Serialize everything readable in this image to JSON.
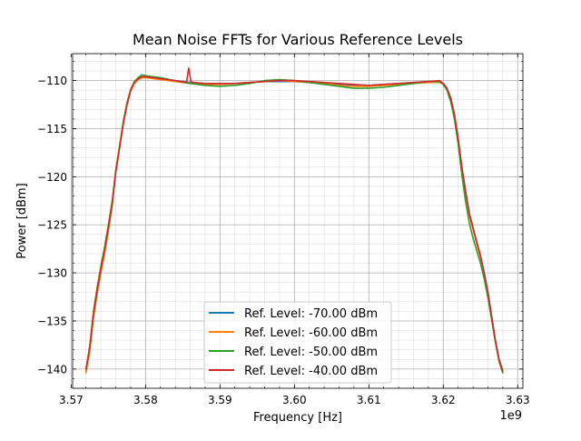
{
  "chart_data": {
    "type": "line",
    "title": "Mean Noise FFTs for Various Reference Levels",
    "xlabel": "Frequency [Hz]",
    "ylabel": "Power [dBm]",
    "x_offset_label": "1e9",
    "xlim": [
      3.5702,
      3.6307
    ],
    "ylim": [
      -142.0,
      -107.2
    ],
    "x_ticks": [
      {
        "value": 3.57,
        "label": "3.57"
      },
      {
        "value": 3.58,
        "label": "3.58"
      },
      {
        "value": 3.59,
        "label": "3.59"
      },
      {
        "value": 3.6,
        "label": "3.60"
      },
      {
        "value": 3.61,
        "label": "3.61"
      },
      {
        "value": 3.62,
        "label": "3.62"
      },
      {
        "value": 3.63,
        "label": "3.63"
      }
    ],
    "y_ticks": [
      {
        "value": -110,
        "label": "−110"
      },
      {
        "value": -115,
        "label": "−115"
      },
      {
        "value": -120,
        "label": "−120"
      },
      {
        "value": -125,
        "label": "−125"
      },
      {
        "value": -130,
        "label": "−130"
      },
      {
        "value": -135,
        "label": "−135"
      },
      {
        "value": -140,
        "label": "−140"
      }
    ],
    "grid": true,
    "minor_grid": true,
    "legend_position": "lower center",
    "series": [
      {
        "name": "Ref. Level: -70.00 dBm",
        "color": "#1f77b4",
        "x": [
          3.572,
          3.5725,
          3.573,
          3.5735,
          3.574,
          3.5745,
          3.575,
          3.5755,
          3.576,
          3.5765,
          3.577,
          3.5775,
          3.578,
          3.5785,
          3.579,
          3.5795,
          3.58,
          3.582,
          3.584,
          3.586,
          3.588,
          3.59,
          3.592,
          3.594,
          3.596,
          3.598,
          3.6,
          3.602,
          3.604,
          3.606,
          3.608,
          3.61,
          3.612,
          3.614,
          3.616,
          3.618,
          3.6195,
          3.62,
          3.6205,
          3.621,
          3.6215,
          3.622,
          3.6225,
          3.623,
          3.6235,
          3.624,
          3.6245,
          3.625,
          3.6255,
          3.626,
          3.6265,
          3.627,
          3.6275,
          3.628
        ],
        "y": [
          -140.2,
          -138.0,
          -134.5,
          -132.0,
          -129.8,
          -127.8,
          -125.5,
          -123.0,
          -119.5,
          -117.0,
          -114.5,
          -112.5,
          -111.0,
          -110.2,
          -109.9,
          -109.7,
          -109.6,
          -109.8,
          -110.0,
          -110.2,
          -110.3,
          -110.4,
          -110.3,
          -110.2,
          -110.1,
          -110.1,
          -110.1,
          -110.2,
          -110.3,
          -110.4,
          -110.5,
          -110.5,
          -110.4,
          -110.3,
          -110.2,
          -110.1,
          -110.1,
          -110.3,
          -110.8,
          -111.8,
          -113.5,
          -116.0,
          -119.0,
          -121.5,
          -123.8,
          -125.3,
          -126.8,
          -128.2,
          -130.0,
          -132.0,
          -134.5,
          -137.0,
          -139.0,
          -140.2
        ]
      },
      {
        "name": "Ref. Level: -60.00 dBm",
        "color": "#ff7f0e",
        "x": [
          3.572,
          3.5725,
          3.573,
          3.5735,
          3.574,
          3.5745,
          3.575,
          3.5755,
          3.576,
          3.5765,
          3.577,
          3.5775,
          3.578,
          3.5785,
          3.579,
          3.5795,
          3.58,
          3.582,
          3.584,
          3.586,
          3.588,
          3.59,
          3.592,
          3.594,
          3.596,
          3.598,
          3.6,
          3.602,
          3.604,
          3.606,
          3.608,
          3.61,
          3.612,
          3.614,
          3.616,
          3.618,
          3.6195,
          3.62,
          3.6205,
          3.621,
          3.6215,
          3.622,
          3.6225,
          3.623,
          3.6235,
          3.624,
          3.6245,
          3.625,
          3.6255,
          3.626,
          3.6265,
          3.627,
          3.6275,
          3.628
        ],
        "y": [
          -140.4,
          -138.2,
          -134.7,
          -132.2,
          -130.0,
          -128.0,
          -125.7,
          -123.1,
          -119.6,
          -117.1,
          -114.6,
          -112.6,
          -111.1,
          -110.3,
          -109.9,
          -109.7,
          -109.7,
          -109.9,
          -110.1,
          -110.3,
          -110.4,
          -110.4,
          -110.3,
          -110.2,
          -110.1,
          -110.0,
          -110.1,
          -110.2,
          -110.3,
          -110.5,
          -110.6,
          -110.6,
          -110.5,
          -110.4,
          -110.3,
          -110.2,
          -110.2,
          -110.4,
          -110.9,
          -111.9,
          -113.6,
          -116.1,
          -119.1,
          -121.6,
          -124.0,
          -125.5,
          -127.0,
          -128.4,
          -130.2,
          -132.2,
          -134.7,
          -137.2,
          -139.2,
          -140.4
        ]
      },
      {
        "name": "Ref. Level: -50.00 dBm",
        "color": "#2ca02c",
        "x": [
          3.572,
          3.5725,
          3.573,
          3.5735,
          3.574,
          3.5745,
          3.575,
          3.5755,
          3.576,
          3.5765,
          3.577,
          3.5775,
          3.578,
          3.5785,
          3.579,
          3.5795,
          3.58,
          3.582,
          3.584,
          3.586,
          3.588,
          3.59,
          3.592,
          3.594,
          3.596,
          3.598,
          3.6,
          3.602,
          3.604,
          3.606,
          3.608,
          3.61,
          3.612,
          3.614,
          3.616,
          3.618,
          3.6195,
          3.62,
          3.6205,
          3.621,
          3.6215,
          3.622,
          3.6225,
          3.623,
          3.6235,
          3.624,
          3.6245,
          3.625,
          3.6255,
          3.626,
          3.6265,
          3.627,
          3.6275,
          3.628
        ],
        "y": [
          -140.0,
          -137.6,
          -134.0,
          -131.5,
          -129.3,
          -127.3,
          -125.0,
          -122.6,
          -119.3,
          -116.8,
          -114.3,
          -112.3,
          -110.9,
          -110.1,
          -109.7,
          -109.4,
          -109.5,
          -109.7,
          -110.0,
          -110.3,
          -110.5,
          -110.6,
          -110.5,
          -110.3,
          -110.0,
          -109.9,
          -110.0,
          -110.2,
          -110.4,
          -110.6,
          -110.8,
          -110.8,
          -110.7,
          -110.5,
          -110.3,
          -110.1,
          -110.1,
          -110.4,
          -111.0,
          -112.2,
          -114.0,
          -116.6,
          -119.8,
          -122.6,
          -124.8,
          -126.4,
          -127.7,
          -129.0,
          -130.6,
          -132.6,
          -134.9,
          -137.2,
          -139.2,
          -140.4
        ]
      },
      {
        "name": "Ref. Level: -40.00 dBm",
        "color": "#d62728",
        "x": [
          3.572,
          3.5725,
          3.573,
          3.5735,
          3.574,
          3.5745,
          3.575,
          3.5755,
          3.576,
          3.5765,
          3.577,
          3.5775,
          3.578,
          3.5785,
          3.579,
          3.5795,
          3.58,
          3.582,
          3.584,
          3.5855,
          3.5858,
          3.5861,
          3.5864,
          3.588,
          3.59,
          3.592,
          3.594,
          3.596,
          3.598,
          3.6,
          3.602,
          3.604,
          3.606,
          3.608,
          3.61,
          3.612,
          3.614,
          3.616,
          3.618,
          3.6195,
          3.62,
          3.6205,
          3.621,
          3.6215,
          3.622,
          3.6225,
          3.623,
          3.6235,
          3.624,
          3.6245,
          3.625,
          3.6255,
          3.626,
          3.6265,
          3.627,
          3.6275,
          3.628
        ],
        "y": [
          -140.0,
          -137.8,
          -134.3,
          -131.8,
          -129.6,
          -127.6,
          -125.3,
          -122.9,
          -119.5,
          -117.0,
          -114.5,
          -112.5,
          -111.0,
          -110.2,
          -109.8,
          -109.6,
          -109.6,
          -109.8,
          -110.0,
          -110.2,
          -108.7,
          -110.1,
          -110.2,
          -110.3,
          -110.3,
          -110.3,
          -110.2,
          -110.1,
          -110.0,
          -110.0,
          -110.1,
          -110.2,
          -110.3,
          -110.4,
          -110.5,
          -110.4,
          -110.3,
          -110.2,
          -110.1,
          -110.0,
          -110.3,
          -110.8,
          -111.8,
          -113.5,
          -116.0,
          -119.0,
          -121.5,
          -123.8,
          -125.3,
          -126.8,
          -128.2,
          -130.0,
          -132.0,
          -134.5,
          -137.0,
          -139.0,
          -140.2
        ]
      }
    ]
  }
}
